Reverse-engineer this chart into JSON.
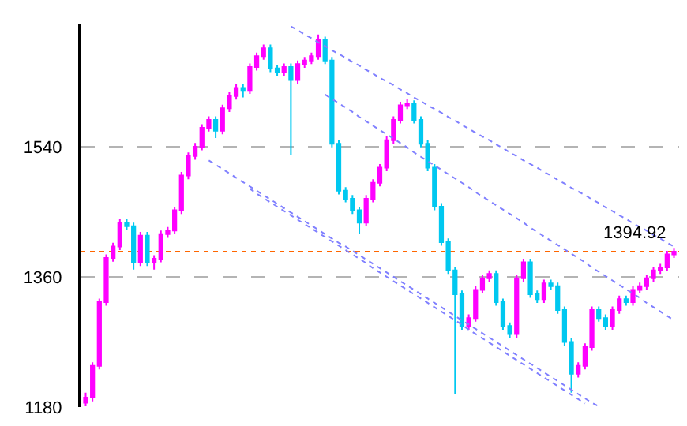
{
  "chart_data": {
    "type": "candlestick",
    "categories": [
      null,
      null,
      null,
      null,
      null,
      null,
      null,
      null,
      null,
      null,
      null,
      null,
      null,
      null,
      null,
      null,
      null,
      null,
      null,
      null,
      null,
      null,
      null,
      null,
      null,
      null,
      null,
      null,
      null,
      null,
      null,
      null,
      null,
      null,
      null,
      null,
      null,
      null,
      null,
      null,
      null,
      null,
      null,
      null,
      null,
      null,
      null,
      null,
      null,
      null,
      null,
      null,
      null,
      null,
      null,
      null,
      null,
      null,
      null,
      null,
      null,
      null,
      null,
      null,
      null,
      null,
      null,
      null,
      null,
      null,
      null,
      null,
      null,
      null,
      null,
      null,
      null,
      null,
      null,
      null,
      null,
      null,
      null,
      null,
      null,
      null,
      null
    ],
    "ohlc": [
      [
        1186,
        1200,
        1181,
        1193
      ],
      [
        1193,
        1242,
        1188,
        1237
      ],
      [
        1237,
        1330,
        1232,
        1325
      ],
      [
        1325,
        1391,
        1320,
        1386
      ],
      [
        1386,
        1407,
        1381,
        1402
      ],
      [
        1402,
        1440,
        1397,
        1435
      ],
      [
        1435,
        1440,
        1425,
        1430
      ],
      [
        1430,
        1435,
        1370,
        1380
      ],
      [
        1380,
        1422,
        1375,
        1417
      ],
      [
        1417,
        1422,
        1375,
        1380
      ],
      [
        1380,
        1390,
        1370,
        1385
      ],
      [
        1385,
        1424,
        1380,
        1419
      ],
      [
        1419,
        1429,
        1414,
        1424
      ],
      [
        1424,
        1457,
        1419,
        1452
      ],
      [
        1452,
        1505,
        1447,
        1500
      ],
      [
        1500,
        1532,
        1495,
        1527
      ],
      [
        1527,
        1545,
        1522,
        1540
      ],
      [
        1540,
        1571,
        1535,
        1566
      ],
      [
        1566,
        1582,
        1561,
        1577
      ],
      [
        1577,
        1582,
        1552,
        1562
      ],
      [
        1562,
        1598,
        1557,
        1593
      ],
      [
        1593,
        1615,
        1588,
        1610
      ],
      [
        1610,
        1626,
        1605,
        1621
      ],
      [
        1621,
        1626,
        1608,
        1618
      ],
      [
        1618,
        1655,
        1613,
        1650
      ],
      [
        1650,
        1670,
        1645,
        1665
      ],
      [
        1665,
        1681,
        1660,
        1676
      ],
      [
        1676,
        1681,
        1643,
        1648
      ],
      [
        1648,
        1653,
        1638,
        1643
      ],
      [
        1643,
        1655,
        1638,
        1650
      ],
      [
        1650,
        1655,
        1529,
        1632
      ],
      [
        1632,
        1659,
        1627,
        1654
      ],
      [
        1654,
        1664,
        1649,
        1659
      ],
      [
        1659,
        1670,
        1654,
        1665
      ],
      [
        1665,
        1695,
        1660,
        1687
      ],
      [
        1687,
        1692,
        1654,
        1659
      ],
      [
        1659,
        1664,
        1539,
        1544
      ],
      [
        1544,
        1549,
        1474,
        1479
      ],
      [
        1479,
        1484,
        1463,
        1468
      ],
      [
        1468,
        1473,
        1447,
        1452
      ],
      [
        1452,
        1457,
        1420,
        1435
      ],
      [
        1435,
        1473,
        1430,
        1468
      ],
      [
        1468,
        1495,
        1463,
        1490
      ],
      [
        1490,
        1516,
        1485,
        1511
      ],
      [
        1511,
        1554,
        1506,
        1549
      ],
      [
        1549,
        1582,
        1544,
        1577
      ],
      [
        1577,
        1602,
        1572,
        1597
      ],
      [
        1597,
        1606,
        1592,
        1599
      ],
      [
        1599,
        1604,
        1572,
        1577
      ],
      [
        1577,
        1582,
        1539,
        1544
      ],
      [
        1544,
        1549,
        1506,
        1511
      ],
      [
        1511,
        1516,
        1452,
        1457
      ],
      [
        1457,
        1462,
        1403,
        1408
      ],
      [
        1408,
        1413,
        1364,
        1369
      ],
      [
        1369,
        1374,
        1198,
        1336
      ],
      [
        1336,
        1341,
        1287,
        1292
      ],
      [
        1292,
        1308,
        1287,
        1303
      ],
      [
        1303,
        1347,
        1298,
        1342
      ],
      [
        1342,
        1363,
        1337,
        1358
      ],
      [
        1358,
        1369,
        1353,
        1364
      ],
      [
        1364,
        1369,
        1320,
        1325
      ],
      [
        1325,
        1330,
        1287,
        1292
      ],
      [
        1292,
        1297,
        1276,
        1281
      ],
      [
        1281,
        1363,
        1276,
        1358
      ],
      [
        1358,
        1385,
        1353,
        1380
      ],
      [
        1380,
        1385,
        1331,
        1336
      ],
      [
        1336,
        1341,
        1324,
        1329
      ],
      [
        1329,
        1356,
        1324,
        1351
      ],
      [
        1351,
        1356,
        1342,
        1347
      ],
      [
        1347,
        1352,
        1309,
        1314
      ],
      [
        1314,
        1319,
        1265,
        1270
      ],
      [
        1270,
        1275,
        1200,
        1226
      ],
      [
        1226,
        1242,
        1221,
        1237
      ],
      [
        1237,
        1268,
        1232,
        1263
      ],
      [
        1263,
        1319,
        1258,
        1314
      ],
      [
        1314,
        1319,
        1298,
        1303
      ],
      [
        1303,
        1308,
        1287,
        1292
      ],
      [
        1292,
        1319,
        1287,
        1314
      ],
      [
        1314,
        1334,
        1309,
        1329
      ],
      [
        1329,
        1334,
        1320,
        1325
      ],
      [
        1325,
        1347,
        1320,
        1342
      ],
      [
        1342,
        1352,
        1337,
        1347
      ],
      [
        1347,
        1363,
        1342,
        1358
      ],
      [
        1358,
        1374,
        1353,
        1369
      ],
      [
        1369,
        1378,
        1364,
        1373
      ],
      [
        1373,
        1396,
        1368,
        1391
      ],
      [
        1391,
        1400,
        1386,
        1394.92
      ]
    ],
    "colors": [
      "#ff00ff",
      "#ff00ff",
      "#ff00ff",
      "#ff00ff",
      "#ff00ff",
      "#ff00ff",
      "#00c8f0",
      "#00c8f0",
      "#ff00ff",
      "#00c8f0",
      "#ff00ff",
      "#ff00ff",
      "#ff00ff",
      "#ff00ff",
      "#ff00ff",
      "#ff00ff",
      "#ff00ff",
      "#ff00ff",
      "#ff00ff",
      "#00c8f0",
      "#ff00ff",
      "#ff00ff",
      "#ff00ff",
      "#00c8f0",
      "#ff00ff",
      "#ff00ff",
      "#ff00ff",
      "#00c8f0",
      "#00c8f0",
      "#ff00ff",
      "#00c8f0",
      "#ff00ff",
      "#ff00ff",
      "#ff00ff",
      "#ff00ff",
      "#00c8f0",
      "#00c8f0",
      "#00c8f0",
      "#00c8f0",
      "#00c8f0",
      "#00c8f0",
      "#ff00ff",
      "#ff00ff",
      "#ff00ff",
      "#ff00ff",
      "#ff00ff",
      "#ff00ff",
      "#ff00ff",
      "#00c8f0",
      "#00c8f0",
      "#00c8f0",
      "#00c8f0",
      "#00c8f0",
      "#00c8f0",
      "#00c8f0",
      "#00c8f0",
      "#ff00ff",
      "#ff00ff",
      "#ff00ff",
      "#ff00ff",
      "#00c8f0",
      "#00c8f0",
      "#00c8f0",
      "#ff00ff",
      "#ff00ff",
      "#00c8f0",
      "#00c8f0",
      "#ff00ff",
      "#00c8f0",
      "#00c8f0",
      "#00c8f0",
      "#00c8f0",
      "#ff00ff",
      "#ff00ff",
      "#ff00ff",
      "#00c8f0",
      "#00c8f0",
      "#ff00ff",
      "#ff00ff",
      "#00c8f0",
      "#ff00ff",
      "#ff00ff",
      "#ff00ff",
      "#ff00ff",
      "#ff00ff",
      "#ff00ff",
      "#ff00ff"
    ],
    "series": [
      {
        "type": "line",
        "color": "#8080ff",
        "line_style": "dotted",
        "values": [
          null,
          null,
          null,
          null,
          null,
          null,
          null,
          null,
          null,
          null,
          null,
          null,
          null,
          null,
          null,
          null,
          null,
          null,
          null,
          null,
          null,
          null,
          null,
          null,
          null,
          null,
          null,
          null,
          null,
          null,
          1706,
          1701,
          1695,
          1690,
          1684,
          1679,
          1673,
          1668,
          1663,
          1657,
          1652,
          1646,
          1641,
          1635,
          1630,
          1625,
          1619,
          1614,
          1608,
          1603,
          1597,
          1592,
          1587,
          1581,
          1576,
          1570,
          1565,
          1559,
          1554,
          1549,
          1543,
          1538,
          1532,
          1527,
          1521,
          1516,
          1511,
          1505,
          1500,
          1494,
          1489,
          1483,
          1478,
          1473,
          1467,
          1462,
          1456,
          1451,
          1445,
          1440,
          1434,
          1429,
          1424,
          1418,
          1413,
          1407,
          1402
        ]
      },
      {
        "type": "line",
        "color": "#8080ff",
        "line_style": "dotted",
        "values": [
          null,
          null,
          null,
          null,
          null,
          null,
          null,
          null,
          null,
          null,
          null,
          null,
          null,
          null,
          null,
          null,
          null,
          null,
          null,
          null,
          null,
          null,
          null,
          null,
          null,
          null,
          null,
          null,
          null,
          null,
          null,
          null,
          null,
          null,
          null,
          1612,
          1606,
          1600,
          1594,
          1588,
          1581,
          1575,
          1569,
          1563,
          1557,
          1551,
          1545,
          1539,
          1532,
          1526,
          1520,
          1514,
          1508,
          1502,
          1496,
          1490,
          1484,
          1477,
          1471,
          1465,
          1459,
          1453,
          1447,
          1441,
          1435,
          1428,
          1422,
          1416,
          1410,
          1404,
          1398,
          1392,
          1386,
          1380,
          1373,
          1367,
          1361,
          1355,
          1349,
          1343,
          1337,
          1331,
          1324,
          1318,
          1312,
          1306,
          1300
        ]
      },
      {
        "type": "line",
        "color": "#8080ff",
        "line_style": "dotted",
        "values": [
          null,
          null,
          null,
          null,
          null,
          null,
          null,
          null,
          null,
          null,
          null,
          null,
          null,
          null,
          null,
          null,
          null,
          null,
          1521,
          1515,
          1509,
          1503,
          1497,
          1491,
          1485,
          1479,
          1473,
          1467,
          1461,
          1455,
          1449,
          1443,
          1437,
          1431,
          1425,
          1419,
          1413,
          1407,
          1402,
          1396,
          1390,
          1384,
          1378,
          1372,
          1366,
          1360,
          1354,
          1348,
          1342,
          1336,
          1330,
          1324,
          1318,
          1312,
          1306,
          1300,
          1294,
          1288,
          1282,
          1276,
          1270,
          1264,
          1258,
          1252,
          1246,
          1240,
          1234,
          1228,
          1222,
          1216,
          1210,
          1204,
          1198,
          1192,
          1186,
          1181,
          null,
          null,
          null,
          null,
          null,
          null,
          null,
          null,
          null,
          null,
          null
        ]
      },
      {
        "type": "line",
        "color": "#8080ff",
        "line_style": "dotted",
        "values": [
          null,
          null,
          null,
          null,
          null,
          null,
          null,
          null,
          null,
          null,
          null,
          null,
          null,
          null,
          null,
          null,
          null,
          null,
          null,
          null,
          null,
          null,
          null,
          null,
          1482,
          1475,
          1469,
          1463,
          1457,
          1451,
          1445,
          1439,
          1433,
          1427,
          1421,
          1415,
          1409,
          1403,
          1397,
          1391,
          1385,
          1379,
          1372,
          1366,
          1360,
          1354,
          1348,
          1342,
          1336,
          1330,
          1324,
          1318,
          1312,
          1306,
          1300,
          1294,
          1287,
          1281,
          1275,
          1269,
          1263,
          1257,
          1251,
          1245,
          1239,
          1233,
          1227,
          1221,
          1215,
          1209,
          1203,
          1197,
          1191,
          1185,
          null,
          null,
          null,
          null,
          null,
          null,
          null,
          null,
          null,
          null,
          null,
          null,
          null
        ]
      }
    ],
    "ref_lines": [
      {
        "axis": "y",
        "value": 1394.92,
        "label": "1394.92",
        "color": "#ff6600",
        "line_style": "dotted"
      }
    ],
    "ylim": [
      1180,
      1710
    ],
    "yticks": [
      1180,
      1360,
      1540
    ],
    "grid": "y",
    "tick_labels": "y"
  }
}
